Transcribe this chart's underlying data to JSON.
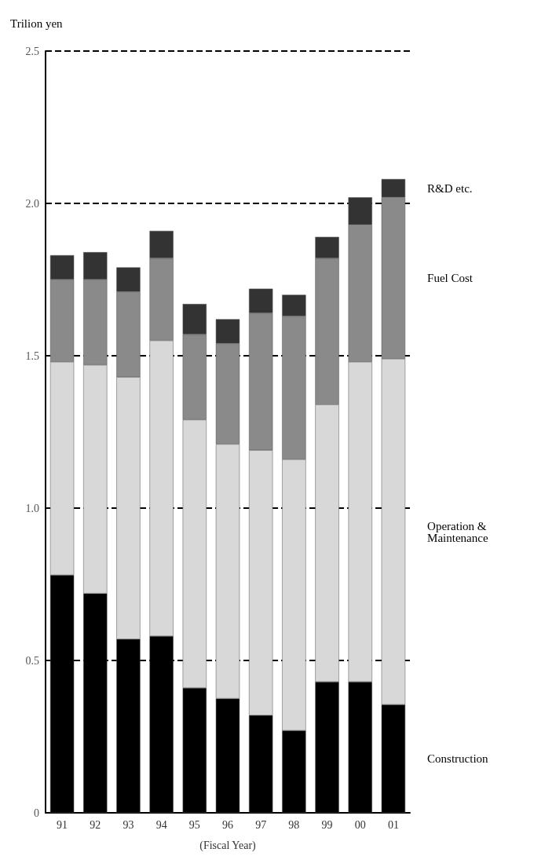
{
  "chart_data": {
    "type": "bar",
    "stacked": true,
    "ylabel": "Trilion yen",
    "xlabel": "(Fiscal Year)",
    "categories": [
      "91",
      "92",
      "93",
      "94",
      "95",
      "96",
      "97",
      "98",
      "99",
      "00",
      "01"
    ],
    "series": [
      {
        "name": "Construction",
        "color": "#000000",
        "values": [
          0.78,
          0.72,
          0.57,
          0.58,
          0.41,
          0.375,
          0.32,
          0.27,
          0.43,
          0.43,
          0.355
        ]
      },
      {
        "name": "Operation & Maintenance",
        "color": "#d8d8d8",
        "values": [
          0.7,
          0.75,
          0.86,
          0.97,
          0.88,
          0.835,
          0.87,
          0.89,
          0.91,
          1.05,
          1.135
        ]
      },
      {
        "name": "Fuel Cost",
        "color": "#8a8a8a",
        "values": [
          0.27,
          0.28,
          0.28,
          0.27,
          0.28,
          0.33,
          0.45,
          0.47,
          0.48,
          0.45,
          0.53
        ]
      },
      {
        "name": "R&D etc.",
        "color": "#333333",
        "values": [
          0.08,
          0.09,
          0.08,
          0.09,
          0.1,
          0.08,
          0.08,
          0.07,
          0.07,
          0.09,
          0.06
        ]
      }
    ],
    "ylim": [
      0,
      2.5
    ],
    "yticks": [
      0,
      0.5,
      {
        "value": 1,
        "label": "1.0"
      },
      {
        "value": 1.5,
        "label": "1.5"
      },
      {
        "value": 2,
        "label": "2.0"
      },
      {
        "value": 2.5,
        "label": "2.5"
      }
    ],
    "grid": "y",
    "line_style": "dashed"
  }
}
